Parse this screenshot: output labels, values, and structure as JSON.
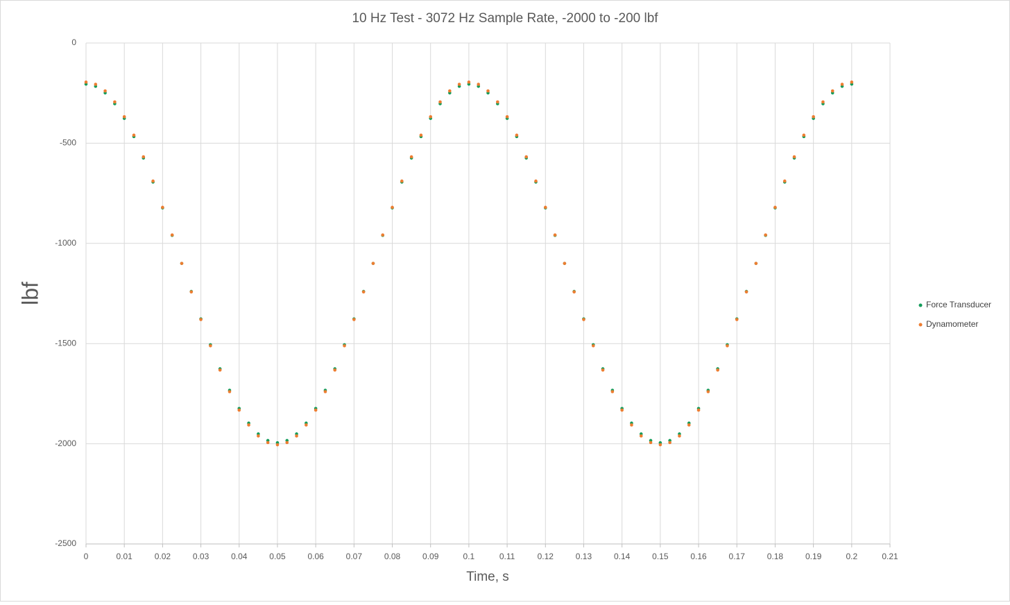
{
  "chart_data": {
    "type": "scatter",
    "title": "10 Hz Test - 3072 Hz Sample Rate, -2000 to -200 lbf",
    "x_label": "Time, s",
    "y_label": "lbf",
    "x": [
      0,
      0.0025,
      0.005,
      0.0075,
      0.01,
      0.0125,
      0.015,
      0.0175,
      0.02,
      0.0225,
      0.025,
      0.0275,
      0.03,
      0.0325,
      0.035,
      0.0375,
      0.04,
      0.0425,
      0.045,
      0.0475,
      0.05,
      0.0525,
      0.055,
      0.0575,
      0.06,
      0.0625,
      0.065,
      0.0675,
      0.07,
      0.0725,
      0.075,
      0.0775,
      0.08,
      0.0825,
      0.085,
      0.0875,
      0.09,
      0.0925,
      0.095,
      0.0975,
      0.1,
      0.1025,
      0.105,
      0.1075,
      0.11,
      0.1125,
      0.115,
      0.1175,
      0.12,
      0.1225,
      0.125,
      0.1275,
      0.13,
      0.1325,
      0.135,
      0.1375,
      0.14,
      0.1425,
      0.145,
      0.1475,
      0.15,
      0.1525,
      0.155,
      0.1575,
      0.16,
      0.1625,
      0.165,
      0.1675,
      0.17,
      0.1725,
      0.175,
      0.1775,
      0.18,
      0.1825,
      0.185,
      0.1875,
      0.19,
      0.1925,
      0.195,
      0.1975,
      0.2
    ],
    "series": [
      {
        "name": "Force Transducer",
        "color": "#149c5a",
        "values": [
          -205,
          -216,
          -249,
          -303,
          -376,
          -467,
          -574,
          -694,
          -823,
          -960,
          -1100,
          -1240,
          -1377,
          -1506,
          -1626,
          -1733,
          -1824,
          -1897,
          -1951,
          -1984,
          -1995,
          -1984,
          -1951,
          -1897,
          -1824,
          -1733,
          -1626,
          -1506,
          -1377,
          -1240,
          -1100,
          -960,
          -823,
          -694,
          -574,
          -467,
          -376,
          -303,
          -249,
          -216,
          -205,
          -216,
          -249,
          -303,
          -376,
          -467,
          -574,
          -694,
          -823,
          -960,
          -1100,
          -1240,
          -1377,
          -1506,
          -1626,
          -1733,
          -1824,
          -1897,
          -1951,
          -1984,
          -1995,
          -1984,
          -1951,
          -1897,
          -1824,
          -1733,
          -1626,
          -1506,
          -1377,
          -1240,
          -1100,
          -960,
          -823,
          -694,
          -574,
          -467,
          -376,
          -303,
          -249,
          -216,
          -205
        ]
      },
      {
        "name": "Dynamometer",
        "color": "#ed7d31",
        "values": [
          -195,
          -206,
          -239,
          -294,
          -368,
          -460,
          -568,
          -689,
          -820,
          -958,
          -1100,
          -1242,
          -1380,
          -1511,
          -1632,
          -1740,
          -1832,
          -1906,
          -1961,
          -1994,
          -2005,
          -1994,
          -1961,
          -1906,
          -1832,
          -1740,
          -1632,
          -1511,
          -1380,
          -1242,
          -1100,
          -958,
          -820,
          -689,
          -568,
          -460,
          -368,
          -294,
          -239,
          -206,
          -195,
          -206,
          -239,
          -294,
          -368,
          -460,
          -568,
          -689,
          -820,
          -958,
          -1100,
          -1242,
          -1380,
          -1511,
          -1632,
          -1740,
          -1832,
          -1906,
          -1961,
          -1994,
          -2005,
          -1994,
          -1961,
          -1906,
          -1832,
          -1740,
          -1632,
          -1511,
          -1380,
          -1242,
          -1100,
          -958,
          -820,
          -689,
          -568,
          -460,
          -368,
          -294,
          -239,
          -206,
          -195
        ]
      }
    ],
    "xlim": [
      0,
      0.21
    ],
    "xticks": [
      0,
      0.01,
      0.02,
      0.03,
      0.04,
      0.05,
      0.06,
      0.07,
      0.08,
      0.09,
      0.1,
      0.11,
      0.12,
      0.13,
      0.14,
      0.15,
      0.16,
      0.17,
      0.18,
      0.19,
      0.2,
      0.21
    ],
    "ylim": [
      -2500,
      0
    ],
    "yticks": [
      0,
      -500,
      -1000,
      -1500,
      -2000,
      -2500
    ],
    "grid": true,
    "legend": "right"
  }
}
